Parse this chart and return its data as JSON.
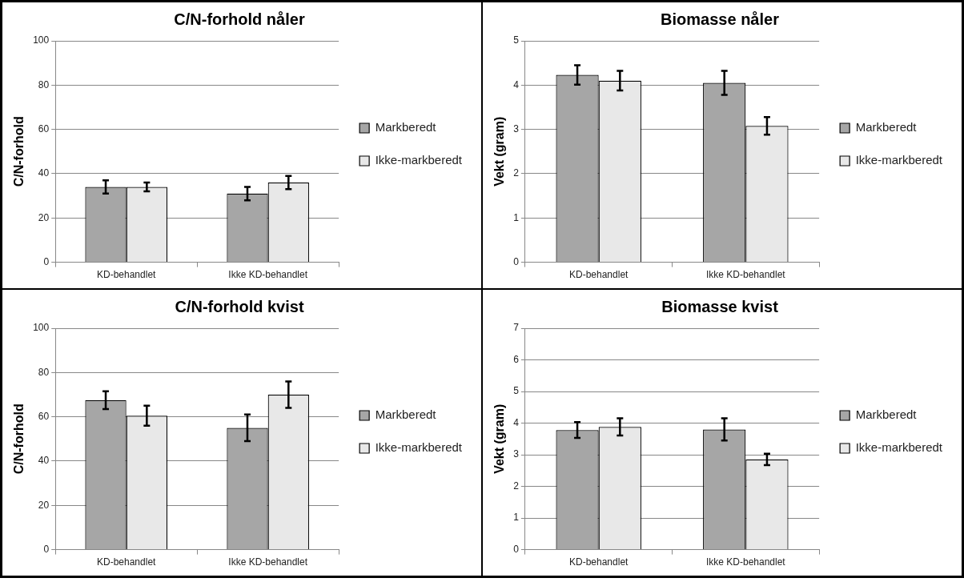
{
  "chart_data": [
    {
      "type": "bar",
      "title": "C/N-forhold nåler",
      "ylabel": "C/N-forhold",
      "categories": [
        "KD-behandlet",
        "Ikke KD-behandlet"
      ],
      "series": [
        {
          "name": "Markberedt",
          "color": "#a6a6a6",
          "values": [
            34,
            31
          ],
          "errors": [
            3,
            3
          ]
        },
        {
          "name": "Ikke-markberedt",
          "color": "#e8e8e8",
          "values": [
            34,
            36
          ],
          "errors": [
            2,
            3
          ]
        }
      ],
      "ylim": [
        0,
        100
      ],
      "yticks": [
        0,
        20,
        40,
        60,
        80,
        100
      ],
      "grid": "y",
      "legend": "right"
    },
    {
      "type": "bar",
      "title": "Biomasse nåler",
      "ylabel": "Vekt (gram)",
      "categories": [
        "KD-behandlet",
        "Ikke KD-behandlet"
      ],
      "series": [
        {
          "name": "Markberedt",
          "color": "#a6a6a6",
          "values": [
            4.23,
            4.05
          ],
          "errors": [
            0.22,
            0.27
          ]
        },
        {
          "name": "Ikke-markberedt",
          "color": "#e8e8e8",
          "values": [
            4.1,
            3.08
          ],
          "errors": [
            0.22,
            0.2
          ]
        }
      ],
      "ylim": [
        0,
        5
      ],
      "yticks": [
        0,
        1,
        2,
        3,
        4,
        5
      ],
      "grid": "y",
      "legend": "right"
    },
    {
      "type": "bar",
      "title": "C/N-forhold kvist",
      "ylabel": "C/N-forhold",
      "categories": [
        "KD-behandlet",
        "Ikke KD-behandlet"
      ],
      "series": [
        {
          "name": "Markberedt",
          "color": "#a6a6a6",
          "values": [
            67.5,
            55
          ],
          "errors": [
            4,
            6
          ]
        },
        {
          "name": "Ikke-markberedt",
          "color": "#e8e8e8",
          "values": [
            60.5,
            70
          ],
          "errors": [
            4.5,
            6
          ]
        }
      ],
      "ylim": [
        0,
        100
      ],
      "yticks": [
        0,
        20,
        40,
        60,
        80,
        100
      ],
      "grid": "y",
      "legend": "right"
    },
    {
      "type": "bar",
      "title": "Biomasse kvist",
      "ylabel": "Vekt (gram)",
      "categories": [
        "KD-behandlet",
        "Ikke KD-behandlet"
      ],
      "series": [
        {
          "name": "Markberedt",
          "color": "#a6a6a6",
          "values": [
            3.78,
            3.8
          ],
          "errors": [
            0.25,
            0.35
          ]
        },
        {
          "name": "Ikke-markberedt",
          "color": "#e8e8e8",
          "values": [
            3.88,
            2.85
          ],
          "errors": [
            0.27,
            0.18
          ]
        }
      ],
      "ylim": [
        0,
        7
      ],
      "yticks": [
        0,
        1,
        2,
        3,
        4,
        5,
        6,
        7
      ],
      "grid": "y",
      "legend": "right"
    }
  ]
}
